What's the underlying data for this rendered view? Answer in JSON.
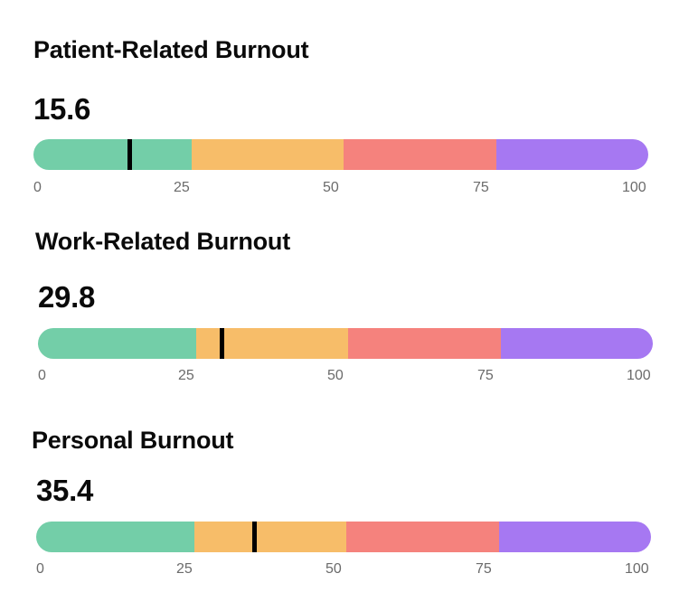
{
  "scale": {
    "ticks": [
      "0",
      "25",
      "50",
      "75",
      "100"
    ]
  },
  "colors": {
    "low": "#73cea8",
    "moderate": "#f7bd69",
    "high": "#f5827d",
    "severe": "#a678f2",
    "marker": "#000000"
  },
  "sections": [
    {
      "title": "Patient-Related Burnout",
      "value": "15.6",
      "score": 15.6
    },
    {
      "title": "Work-Related Burnout",
      "value": "29.8",
      "score": 29.8
    },
    {
      "title": "Personal Burnout",
      "value": "35.4",
      "score": 35.4
    }
  ]
}
